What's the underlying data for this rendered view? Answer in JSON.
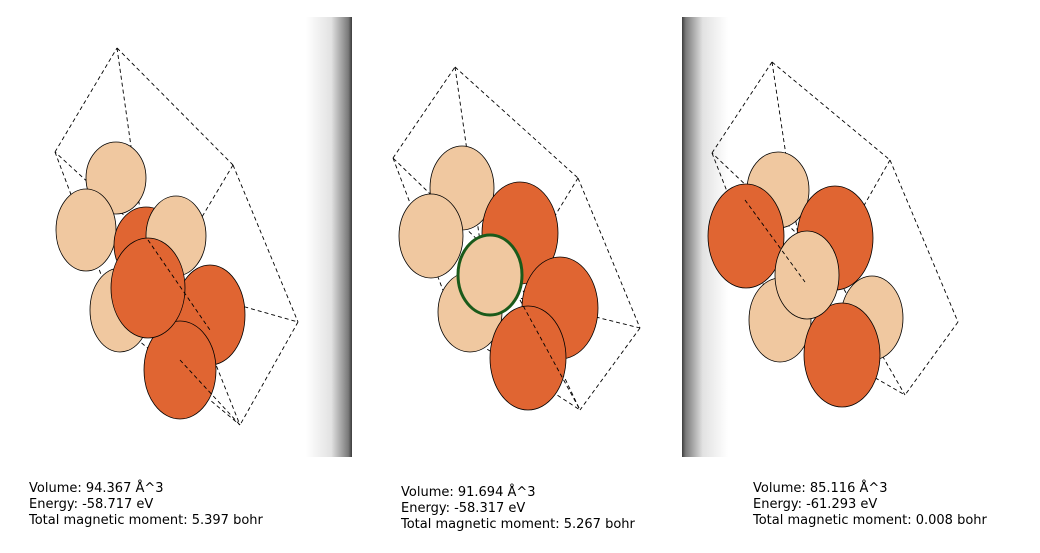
{
  "structures": [
    {
      "volume": "Volume: 94.367 Å^3",
      "energy": "Energy: -58.717 eV",
      "magnetic_moment": "Total magnetic moment: 5.397 bohr"
    },
    {
      "volume": "Volume: 91.694 Å^3",
      "energy": "Energy: -58.317 eV",
      "magnetic_moment": "Total magnetic moment: 5.267 bohr"
    },
    {
      "volume": "Volume: 85.116 Å^3",
      "energy": "Energy: -61.293 eV",
      "magnetic_moment": "Total magnetic moment: 0.008 bohr"
    }
  ],
  "colors": {
    "atom_light": "#f0c8a0",
    "atom_dark": "#e06532",
    "selection_ring": "#1a5a1a"
  }
}
